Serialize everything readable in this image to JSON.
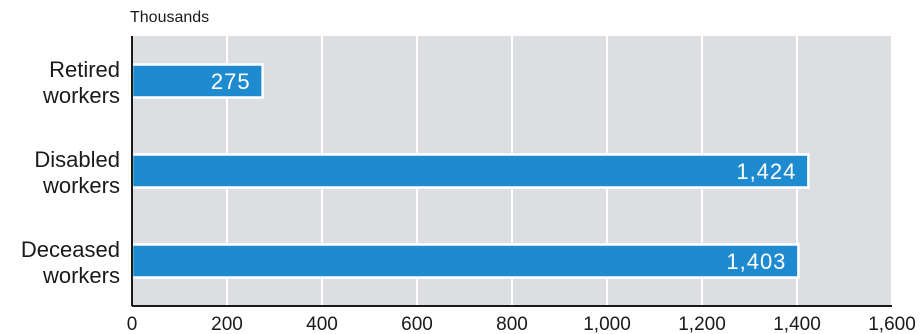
{
  "chart_data": {
    "type": "bar",
    "orientation": "horizontal",
    "unit_label": "Thousands",
    "categories": [
      [
        "Retired",
        "workers"
      ],
      [
        "Disabled",
        "workers"
      ],
      [
        "Deceased",
        "workers"
      ]
    ],
    "values": [
      275,
      1424,
      1403
    ],
    "value_labels": [
      "275",
      "1,424",
      "1,403"
    ],
    "xlim": [
      0,
      1600
    ],
    "ticks": [
      0,
      200,
      400,
      600,
      800,
      1000,
      1200,
      1400,
      1600
    ],
    "tick_labels": [
      "0",
      "200",
      "400",
      "600",
      "800",
      "1,000",
      "1,200",
      "1,400",
      "1,600"
    ],
    "grid": true,
    "colors": {
      "bar": "#1e8ad0",
      "bar_outline": "#ffffff",
      "plot_background": "#dcdee2",
      "gridline": "#ffffff",
      "axis": "#1a1a1a"
    }
  }
}
